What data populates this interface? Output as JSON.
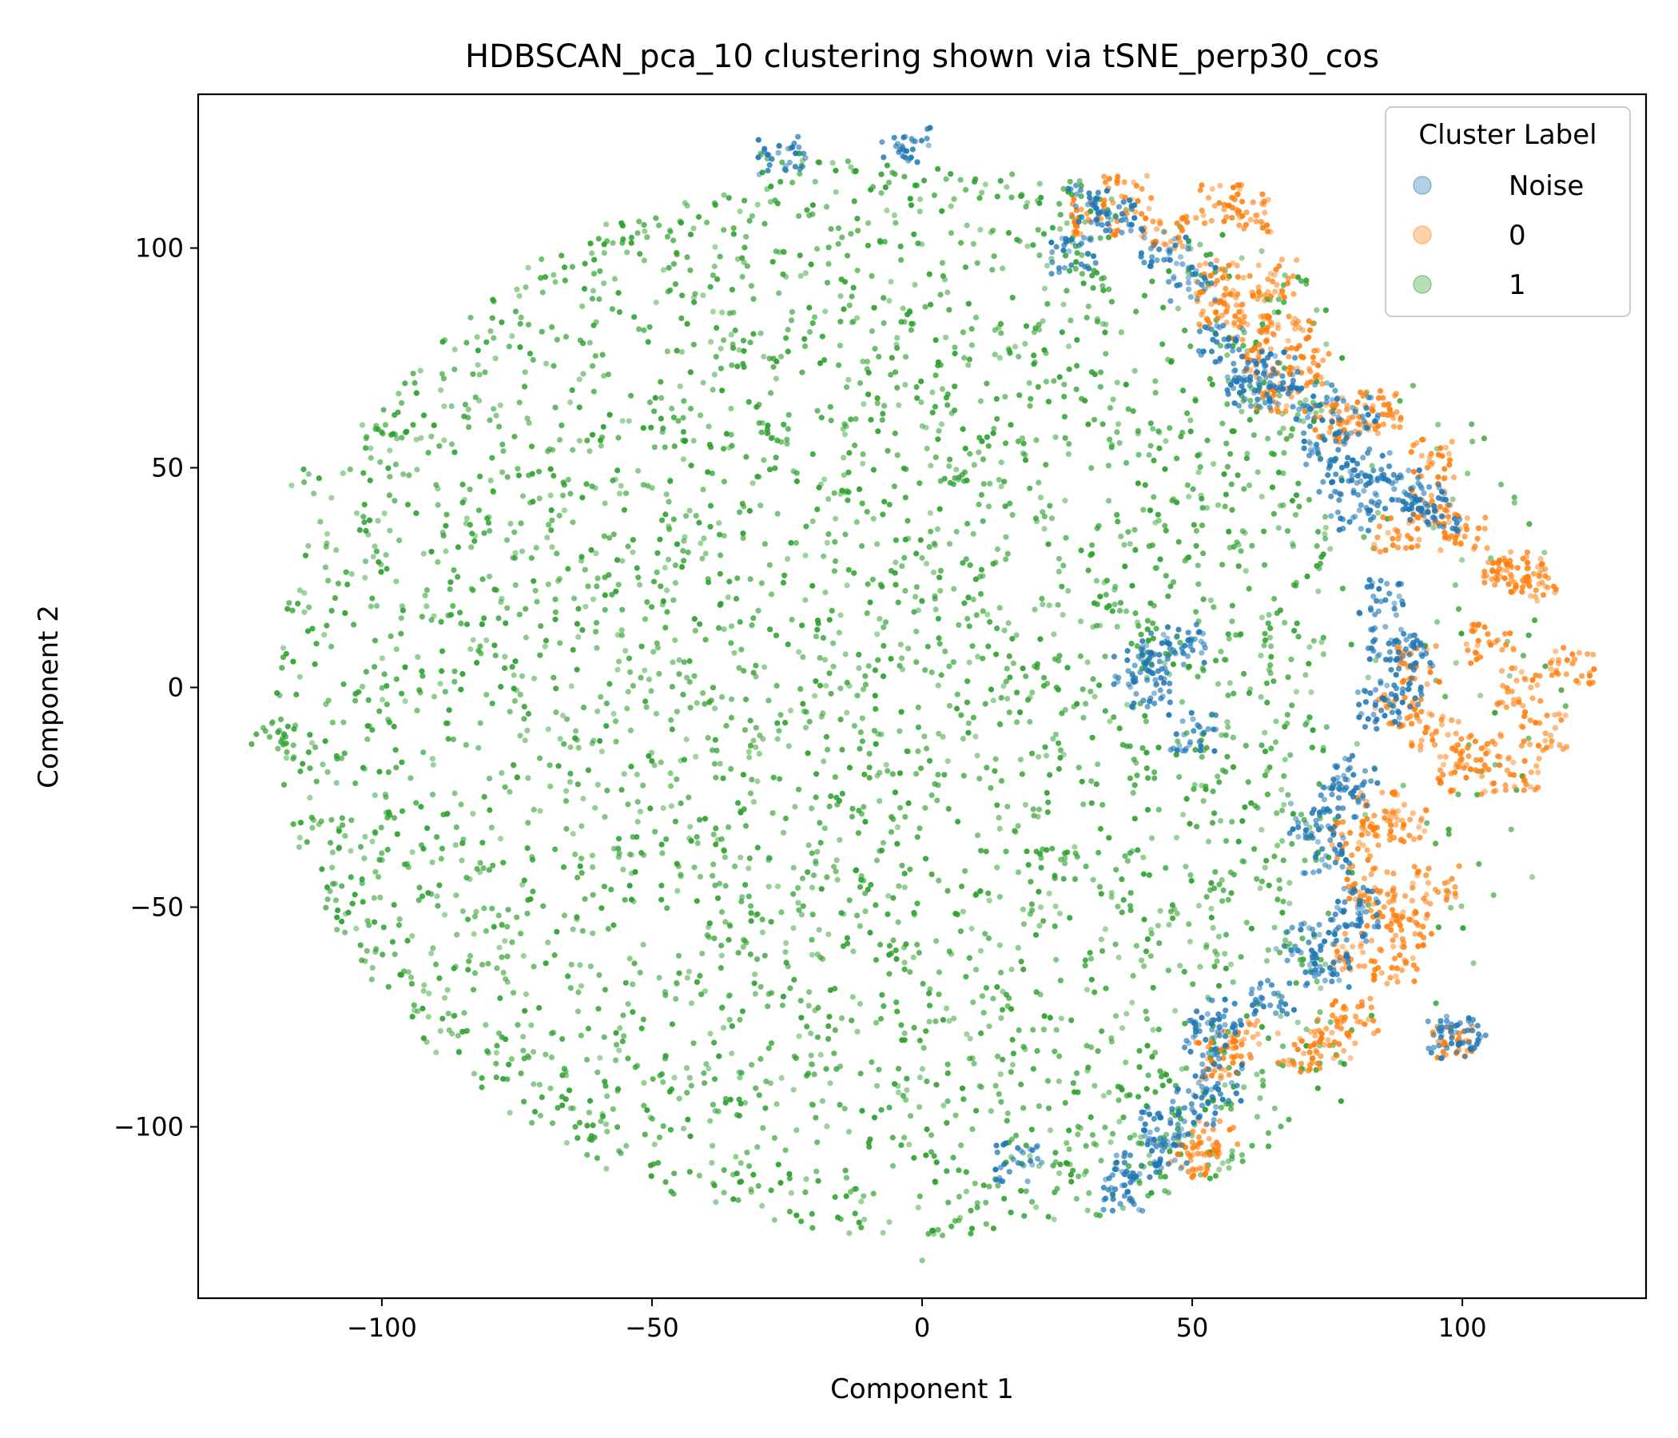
{
  "chart_data": {
    "type": "scatter",
    "title": "HDBSCAN_pca_10 clustering shown via tSNE_perp30_cos",
    "xlabel": "Component 1",
    "ylabel": "Component 2",
    "xlim": [
      -134,
      134
    ],
    "ylim": [
      -139,
      135
    ],
    "x_ticks": [
      -100,
      -50,
      0,
      50,
      100
    ],
    "y_ticks": [
      -100,
      -50,
      0,
      50,
      100
    ],
    "x_tick_labels": [
      "−100",
      "−50",
      "0",
      "50",
      "100"
    ],
    "y_tick_labels": [
      "−100",
      "−50",
      "0",
      "50",
      "100"
    ],
    "grid": false,
    "legend": {
      "title": "Cluster Label",
      "placement": "top-right",
      "entries": [
        {
          "label": "Noise",
          "color": "#1f77b4"
        },
        {
          "label": "0",
          "color": "#ff7f0e"
        },
        {
          "label": "1",
          "color": "#2ca02c"
        }
      ]
    },
    "series": [
      {
        "name": "1",
        "color": "#2ca02c",
        "region": {
          "description_free": true,
          "center": [
            0,
            -3
          ],
          "radius_x": 120,
          "radius_y": 122,
          "count": 4200
        },
        "points": [
          [
            -114,
            46
          ],
          [
            -122,
            -11
          ],
          [
            -118,
            -12
          ],
          [
            -110,
            -18
          ],
          [
            -104,
            -35
          ],
          [
            -100,
            57
          ],
          [
            -95,
            60
          ],
          [
            -90,
            -73
          ],
          [
            -84,
            37
          ],
          [
            -82,
            -53
          ],
          [
            -75,
            -84
          ],
          [
            -70,
            95
          ],
          [
            -62,
            -100
          ],
          [
            -58,
            102
          ],
          [
            -50,
            102
          ],
          [
            -30,
            -112
          ],
          [
            -26,
            121
          ],
          [
            -20,
            117
          ],
          [
            -10,
            116
          ],
          [
            2,
            113
          ],
          [
            15,
            115
          ],
          [
            3,
            -127
          ],
          [
            10,
            -120
          ],
          [
            20,
            100
          ],
          [
            30,
            95
          ],
          [
            -40,
            -14
          ],
          [
            -10,
            0
          ],
          [
            0,
            30
          ],
          [
            10,
            50
          ],
          [
            25,
            -40
          ],
          [
            35,
            20
          ],
          [
            40,
            -95
          ],
          [
            -5,
            -60
          ],
          [
            -20,
            -80
          ],
          [
            15,
            -70
          ],
          [
            55,
            45
          ],
          [
            60,
            80
          ],
          [
            70,
            90
          ],
          [
            70,
            60
          ],
          [
            75,
            30
          ],
          [
            60,
            10
          ],
          [
            70,
            -10
          ],
          [
            65,
            -40
          ],
          [
            70,
            -60
          ],
          [
            75,
            -85
          ],
          [
            45,
            -110
          ],
          [
            30,
            -110
          ],
          [
            48,
            -100
          ],
          [
            50,
            -95
          ],
          [
            -30,
            60
          ]
        ]
      },
      {
        "name": "0",
        "color": "#ff7f0e",
        "points": [
          [
            38,
            112
          ],
          [
            32,
            107
          ],
          [
            45,
            104
          ],
          [
            55,
            110
          ],
          [
            60,
            108
          ],
          [
            55,
            93
          ],
          [
            60,
            85
          ],
          [
            65,
            93
          ],
          [
            68,
            80
          ],
          [
            72,
            73
          ],
          [
            55,
            86
          ],
          [
            62,
            75
          ],
          [
            66,
            67
          ],
          [
            75,
            60
          ],
          [
            80,
            62
          ],
          [
            85,
            63
          ],
          [
            95,
            52
          ],
          [
            95,
            42
          ],
          [
            88,
            35
          ],
          [
            100,
            35
          ],
          [
            108,
            28
          ],
          [
            110,
            25
          ],
          [
            113,
            24
          ],
          [
            105,
            10
          ],
          [
            110,
            0
          ],
          [
            120,
            5
          ],
          [
            115,
            -10
          ],
          [
            100,
            -20
          ],
          [
            95,
            -10
          ],
          [
            92,
            5
          ],
          [
            88,
            -5
          ],
          [
            110,
            -20
          ],
          [
            103,
            -15
          ],
          [
            85,
            -28
          ],
          [
            90,
            -32
          ],
          [
            80,
            -35
          ],
          [
            83,
            -45
          ],
          [
            85,
            -50
          ],
          [
            90,
            -55
          ],
          [
            95,
            -45
          ],
          [
            80,
            -60
          ],
          [
            88,
            -63
          ],
          [
            70,
            -83
          ],
          [
            76,
            -80
          ],
          [
            80,
            -75
          ],
          [
            58,
            -80
          ],
          [
            55,
            -85
          ],
          [
            54,
            -103
          ],
          [
            50,
            -107
          ],
          [
            98,
            -80
          ]
        ]
      },
      {
        "name": "Noise",
        "color": "#1f77b4",
        "points": [
          [
            -3,
            123
          ],
          [
            -26,
            121
          ],
          [
            30,
            110
          ],
          [
            28,
            98
          ],
          [
            35,
            108
          ],
          [
            45,
            100
          ],
          [
            50,
            92
          ],
          [
            55,
            78
          ],
          [
            60,
            70
          ],
          [
            62,
            68
          ],
          [
            65,
            72
          ],
          [
            72,
            65
          ],
          [
            80,
            62
          ],
          [
            75,
            55
          ],
          [
            78,
            48
          ],
          [
            83,
            50
          ],
          [
            88,
            45
          ],
          [
            92,
            42
          ],
          [
            95,
            40
          ],
          [
            80,
            40
          ],
          [
            40,
            5
          ],
          [
            45,
            8
          ],
          [
            48,
            10
          ],
          [
            42,
            0
          ],
          [
            50,
            -10
          ],
          [
            85,
            20
          ],
          [
            87,
            10
          ],
          [
            90,
            8
          ],
          [
            88,
            0
          ],
          [
            85,
            -5
          ],
          [
            80,
            -20
          ],
          [
            78,
            -25
          ],
          [
            72,
            -30
          ],
          [
            75,
            -38
          ],
          [
            78,
            -55
          ],
          [
            80,
            -50
          ],
          [
            70,
            -58
          ],
          [
            75,
            -65
          ],
          [
            65,
            -70
          ],
          [
            55,
            -75
          ],
          [
            52,
            -80
          ],
          [
            55,
            -90
          ],
          [
            50,
            -95
          ],
          [
            45,
            -105
          ],
          [
            40,
            -110
          ],
          [
            38,
            -115
          ],
          [
            18,
            -108
          ],
          [
            98,
            -80
          ],
          [
            100,
            -79
          ],
          [
            45,
            -100
          ]
        ]
      }
    ]
  }
}
